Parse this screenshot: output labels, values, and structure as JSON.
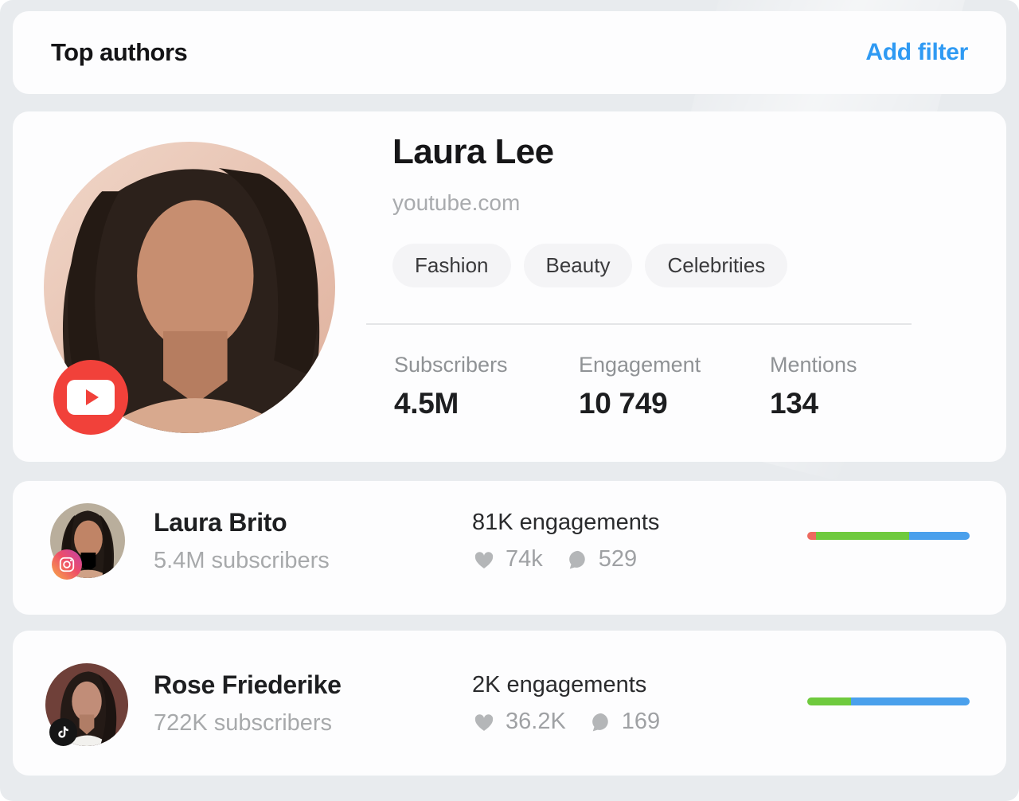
{
  "header": {
    "title": "Top authors",
    "add_filter": "Add filter"
  },
  "featured": {
    "name": "Laura Lee",
    "website": "youtube.com",
    "platform_icon": "youtube-icon",
    "tags": [
      "Fashion",
      "Beauty",
      "Celebrities"
    ],
    "stats": [
      {
        "label": "Subscribers",
        "value": "4.5M"
      },
      {
        "label": "Engagement",
        "value": "10 749"
      },
      {
        "label": "Mentions",
        "value": "134"
      }
    ]
  },
  "authors": [
    {
      "name": "Laura Brito",
      "subscribers": "5.4M subscribers",
      "engagements": "81K engagements",
      "likes": "74k",
      "comments": "529",
      "platform_icon": "instagram-icon",
      "bar": [
        {
          "color": "#ed6a5f",
          "pct": 5.5
        },
        {
          "color": "#6fca3e",
          "pct": 57
        },
        {
          "color": "#4aa0ec",
          "pct": 37.5
        }
      ]
    },
    {
      "name": "Rose Friederike",
      "subscribers": "722K subscribers",
      "engagements": "2K engagements",
      "likes": "36.2K",
      "comments": "169",
      "platform_icon": "tiktok-icon",
      "bar": [
        {
          "color": "#6fca3e",
          "pct": 27
        },
        {
          "color": "#4aa0ec",
          "pct": 73
        }
      ]
    }
  ],
  "colors": {
    "accent_blue": "#2f9af3",
    "youtube_red": "#f1413a",
    "background": "#e8ebee",
    "card": "#fdfdfe",
    "bar_red": "#ed6a5f",
    "bar_green": "#6fca3e",
    "bar_blue": "#4aa0ec"
  },
  "icons": {
    "likes": "heart-icon",
    "comments": "comment-icon"
  }
}
